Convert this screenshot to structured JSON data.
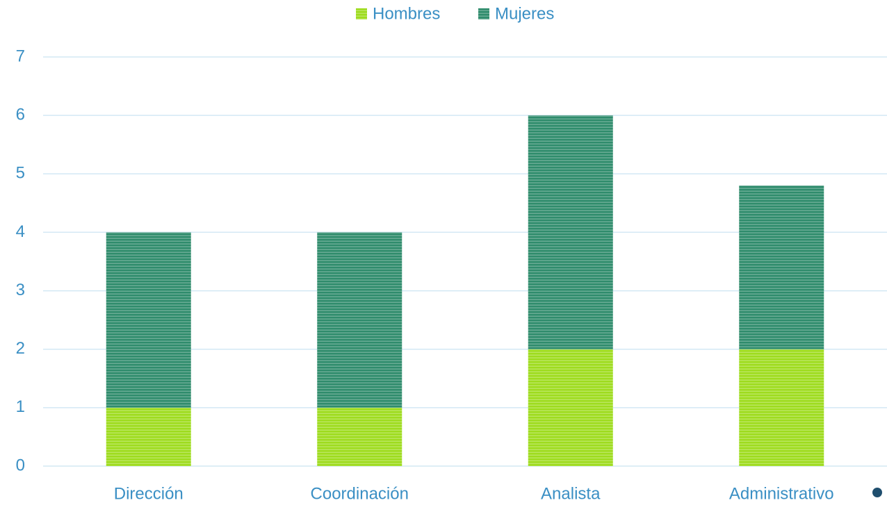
{
  "chart_data": {
    "type": "bar",
    "stacked": true,
    "categories": [
      "Dirección",
      "Coordinación",
      "Analista",
      "Administrativo"
    ],
    "series": [
      {
        "name": "Hombres",
        "color": "#9edc1e",
        "values": [
          1,
          1,
          2,
          2
        ]
      },
      {
        "name": "Mujeres",
        "color": "#2f8c6c",
        "values": [
          3,
          3,
          4,
          2.8
        ]
      }
    ],
    "ylim": [
      0,
      7
    ],
    "yticks": [
      0,
      1,
      2,
      3,
      4,
      5,
      6,
      7
    ],
    "grid": true,
    "legend": "top"
  }
}
